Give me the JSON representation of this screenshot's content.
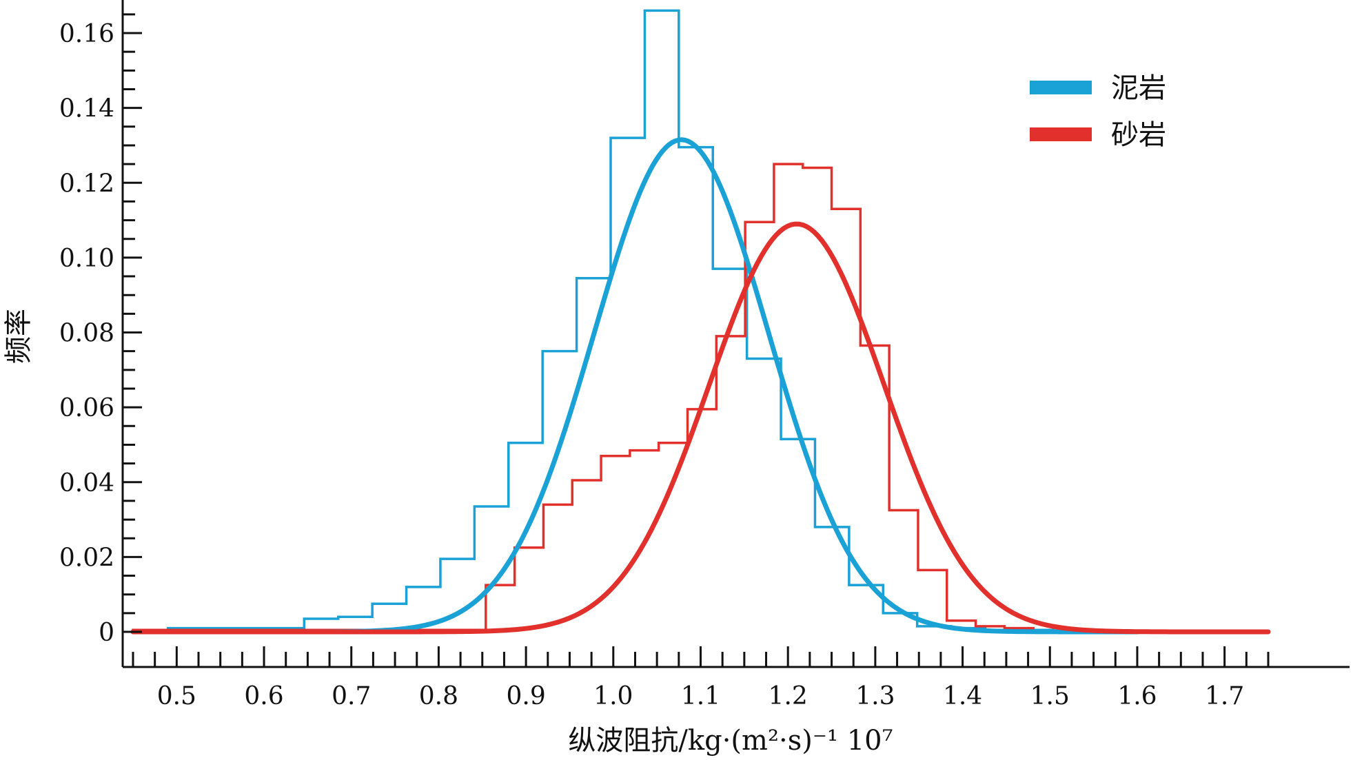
{
  "chart_data": {
    "type": "histogram-with-density",
    "xlabel": "纵波阻抗/kg·(m²·s)⁻¹ 10⁷",
    "ylabel": "频率",
    "xlim": [
      0.45,
      1.75
    ],
    "ylim": [
      0,
      0.166
    ],
    "x_ticks": [
      0.5,
      0.6,
      0.7,
      0.8,
      0.9,
      1.0,
      1.1,
      1.2,
      1.3,
      1.4,
      1.5,
      1.6,
      1.7
    ],
    "x_tick_labels": [
      "0.5",
      "0.6",
      "0.7",
      "0.8",
      "0.9",
      "1.0",
      "1.1",
      "1.2",
      "1.3",
      "1.4",
      "1.5",
      "1.6",
      "1.7"
    ],
    "y_ticks": [
      0,
      0.02,
      0.04,
      0.06,
      0.08,
      0.1,
      0.12,
      0.14,
      0.16
    ],
    "y_tick_labels": [
      "0",
      "0.02",
      "0.04",
      "0.06",
      "0.08",
      "0.10",
      "0.12",
      "0.14",
      "0.16"
    ],
    "legend_position": "top-right",
    "series": [
      {
        "name": "泥岩",
        "color": "#1aa1d6",
        "histogram": {
          "edges": [
            0.49,
            0.529,
            0.568,
            0.607,
            0.646,
            0.685,
            0.724,
            0.763,
            0.802,
            0.841,
            0.88,
            0.919,
            0.958,
            0.997,
            1.036,
            1.075,
            1.114,
            1.153,
            1.192,
            1.231,
            1.27,
            1.309,
            1.348,
            1.387,
            1.426,
            1.465,
            1.504
          ],
          "values": [
            0.001,
            0.001,
            0.001,
            0.001,
            0.0035,
            0.004,
            0.0075,
            0.012,
            0.0195,
            0.0335,
            0.0505,
            0.075,
            0.0945,
            0.132,
            0.166,
            0.1295,
            0.097,
            0.073,
            0.0515,
            0.028,
            0.0125,
            0.005,
            0.0015,
            0.001,
            0.0005,
            0.0005
          ]
        },
        "fit": {
          "mean": 1.078,
          "sd": 0.1,
          "peak": 0.1315,
          "x_range": [
            0.49,
            1.6
          ]
        }
      },
      {
        "name": "砂岩",
        "color": "#e2302c",
        "histogram": {
          "edges": [
            0.45,
            0.854,
            0.887,
            0.92,
            0.953,
            0.986,
            1.019,
            1.052,
            1.085,
            1.118,
            1.151,
            1.184,
            1.217,
            1.25,
            1.283,
            1.316,
            1.349,
            1.382,
            1.415,
            1.448,
            1.481
          ],
          "values": [
            0.0005,
            0.0125,
            0.0225,
            0.034,
            0.0405,
            0.047,
            0.0485,
            0.0505,
            0.0595,
            0.079,
            0.1095,
            0.125,
            0.124,
            0.113,
            0.0765,
            0.0325,
            0.0165,
            0.003,
            0.0015,
            0.001
          ]
        },
        "fit": {
          "mean": 1.21,
          "sd": 0.1,
          "peak": 0.109,
          "x_range": [
            0.45,
            1.75
          ]
        }
      }
    ]
  }
}
